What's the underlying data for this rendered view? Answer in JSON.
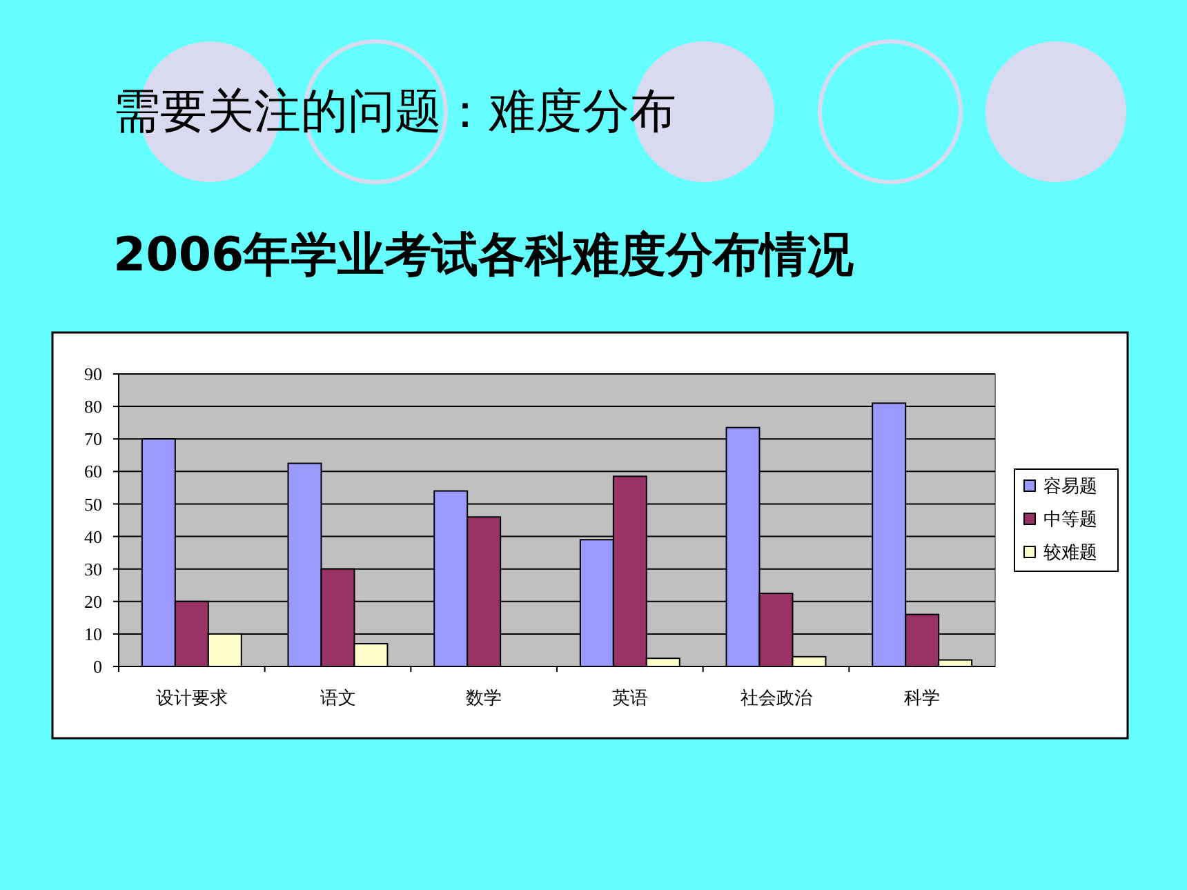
{
  "chart_data": {
    "type": "bar",
    "title": "需要关注的问题：难度分布",
    "subtitle": "2006年学业考试各科难度分布情况",
    "categories": [
      "设计要求",
      "语文",
      "数学",
      "英语",
      "社会政治",
      "科学"
    ],
    "series": [
      {
        "name": "容易题",
        "color": "#9999ff",
        "values": [
          70,
          62.5,
          54,
          39,
          73.5,
          81
        ]
      },
      {
        "name": "中等题",
        "color": "#993366",
        "values": [
          20,
          30,
          46,
          58.5,
          22.5,
          16
        ]
      },
      {
        "name": "较难题",
        "color": "#ffffcc",
        "values": [
          10,
          7,
          null,
          2.5,
          3,
          2
        ]
      }
    ],
    "ylim": [
      0,
      90
    ],
    "yticks": [
      0,
      10,
      20,
      30,
      40,
      50,
      60,
      70,
      80,
      90
    ],
    "grid": "y",
    "legend": "right"
  }
}
